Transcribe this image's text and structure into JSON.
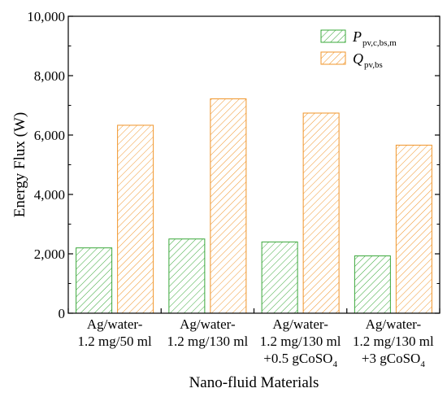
{
  "chart_data": {
    "type": "bar",
    "categories": [
      [
        "Ag/water-",
        "1.2 mg/50 ml"
      ],
      [
        "Ag/water-",
        "1.2 mg/130 ml"
      ],
      [
        "Ag/water-",
        "1.2 mg/130 ml",
        "+0.5 gCoSO",
        "4"
      ],
      [
        "Ag/water-",
        "1.2 mg/130 ml",
        "+3 gCoSO",
        "4"
      ]
    ],
    "series": [
      {
        "name": "P",
        "name_sub": "pv,c,bs,m",
        "values": [
          2200,
          2500,
          2400,
          1930
        ],
        "color": "#3aa83a"
      },
      {
        "name": "Q",
        "name_sub": "pv,bs",
        "values": [
          6330,
          7220,
          6740,
          5660
        ],
        "color": "#f0952a"
      }
    ],
    "ylim": [
      0,
      10000
    ],
    "yticks": [
      "0",
      "2,000",
      "4,000",
      "6,000",
      "8,000",
      "10,000"
    ],
    "ytick_values": [
      0,
      2000,
      4000,
      6000,
      8000,
      10000
    ],
    "xlabel": "Nano-fluid Materials",
    "ylabel": "Energy Flux (W)",
    "legend_position": "top-right",
    "grid": false
  }
}
